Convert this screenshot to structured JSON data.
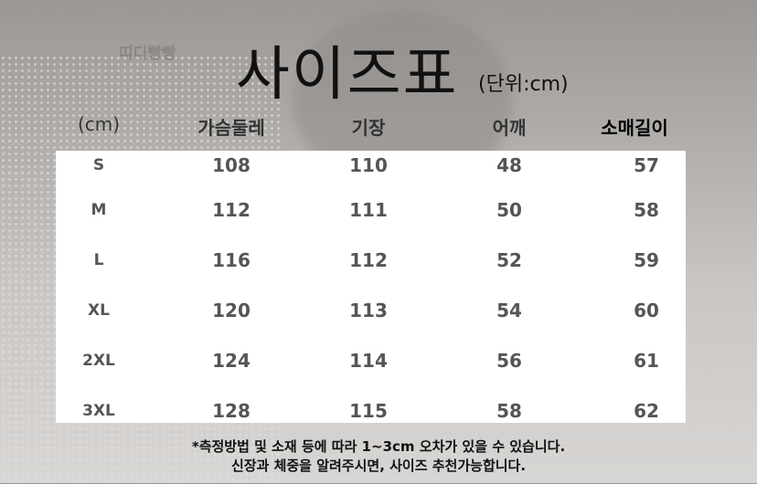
{
  "brand": "띠디빵빵",
  "title": "사이즈표",
  "unit": "(단위:cm)",
  "headers": [
    "(cm)",
    "가슴둘레",
    "기장",
    "어깨",
    "소매길이"
  ],
  "rows": [
    [
      "S",
      "108",
      "110",
      "48",
      "57"
    ],
    [
      "M",
      "112",
      "111",
      "50",
      "58"
    ],
    [
      "L",
      "116",
      "112",
      "52",
      "59"
    ],
    [
      "XL",
      "120",
      "113",
      "54",
      "60"
    ],
    [
      "2XL",
      "124",
      "114",
      "56",
      "61"
    ],
    [
      "3XL",
      "128",
      "115",
      "58",
      "62"
    ]
  ],
  "notes": [
    "*측정방법 및 소재 등에 따라 1~3cm 오차가 있을 수 있습니다.",
    "신장과 체중을 알려주시면, 사이즈 추천가능합니다."
  ]
}
